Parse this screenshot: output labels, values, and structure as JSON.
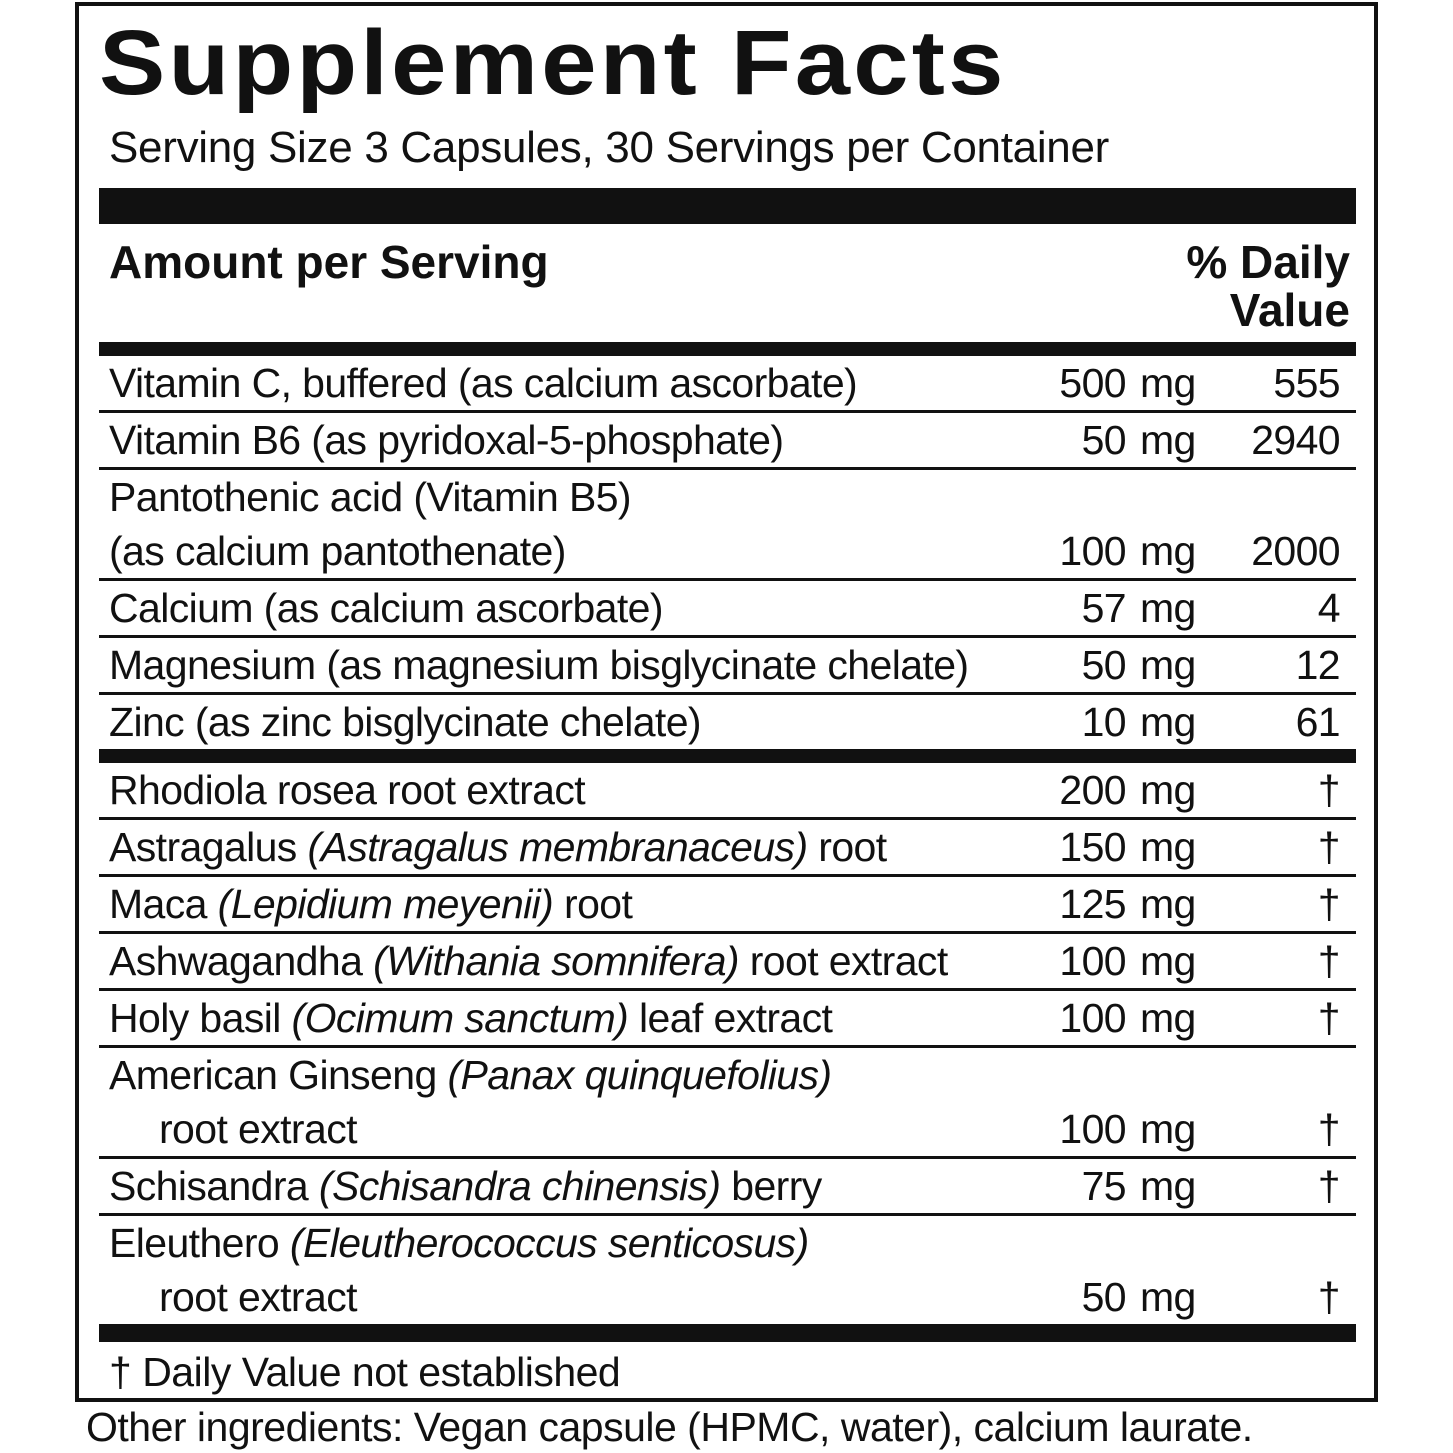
{
  "title": "Supplement Facts",
  "serving": "Serving Size 3 Capsules, 30 Servings per Container",
  "header": {
    "amount": "Amount per Serving",
    "dv": [
      "% Daily",
      "Value"
    ]
  },
  "sections": [
    {
      "rows": [
        {
          "lines": [
            [
              {
                "text": "Vitamin C, buffered (as calcium ascorbate)"
              }
            ]
          ],
          "amount": 500,
          "unit": "mg",
          "dv": 555
        },
        {
          "lines": [
            [
              {
                "text": "Vitamin B6 (as pyridoxal-5-phosphate)"
              }
            ]
          ],
          "amount": 50,
          "unit": "mg",
          "dv": 2940
        },
        {
          "lines": [
            [
              {
                "text": "Pantothenic acid (Vitamin B5)"
              }
            ],
            [
              {
                "text": "(as calcium pantothenate)"
              }
            ]
          ],
          "amount": 100,
          "unit": "mg",
          "dv": 2000
        },
        {
          "lines": [
            [
              {
                "text": "Calcium (as calcium ascorbate)"
              }
            ]
          ],
          "amount": 57,
          "unit": "mg",
          "dv": 4
        },
        {
          "lines": [
            [
              {
                "text": "Magnesium (as magnesium bisglycinate chelate)"
              }
            ]
          ],
          "amount": 50,
          "unit": "mg",
          "dv": 12
        },
        {
          "lines": [
            [
              {
                "text": "Zinc (as zinc bisglycinate chelate)"
              }
            ]
          ],
          "amount": 10,
          "unit": "mg",
          "dv": 61
        }
      ]
    },
    {
      "rows": [
        {
          "lines": [
            [
              {
                "text": "Rhodiola rosea root extract"
              }
            ]
          ],
          "amount": 200,
          "unit": "mg",
          "dv": "†"
        },
        {
          "lines": [
            [
              {
                "text": "Astragalus "
              },
              {
                "text": "(Astragalus membranaceus)",
                "italic": true
              },
              {
                "text": " root"
              }
            ]
          ],
          "amount": 150,
          "unit": "mg",
          "dv": "†"
        },
        {
          "lines": [
            [
              {
                "text": "Maca "
              },
              {
                "text": "(Lepidium meyenii)",
                "italic": true
              },
              {
                "text": " root"
              }
            ]
          ],
          "amount": 125,
          "unit": "mg",
          "dv": "†"
        },
        {
          "lines": [
            [
              {
                "text": "Ashwagandha "
              },
              {
                "text": "(Withania somnifera)",
                "italic": true
              },
              {
                "text": " root extract"
              }
            ]
          ],
          "amount": 100,
          "unit": "mg",
          "dv": "†"
        },
        {
          "lines": [
            [
              {
                "text": "Holy basil "
              },
              {
                "text": "(Ocimum sanctum)",
                "italic": true
              },
              {
                "text": " leaf extract"
              }
            ]
          ],
          "amount": 100,
          "unit": "mg",
          "dv": "†"
        },
        {
          "lines": [
            [
              {
                "text": "American Ginseng "
              },
              {
                "text": "(Panax quinquefolius)",
                "italic": true
              }
            ],
            [
              {
                "text": "root extract"
              }
            ]
          ],
          "amount": 100,
          "unit": "mg",
          "dv": "†"
        },
        {
          "lines": [
            [
              {
                "text": "Schisandra "
              },
              {
                "text": "(Schisandra chinensis)",
                "italic": true
              },
              {
                "text": " berry"
              }
            ]
          ],
          "amount": 75,
          "unit": "mg",
          "dv": "†"
        },
        {
          "lines": [
            [
              {
                "text": "Eleuthero "
              },
              {
                "text": "(Eleutherococcus senticosus)",
                "italic": true
              }
            ],
            [
              {
                "text": "root extract"
              }
            ]
          ],
          "amount": 50,
          "unit": "mg",
          "dv": "†"
        }
      ]
    }
  ],
  "footnote": "† Daily Value not established",
  "other": "Other ingredients: Vegan capsule (HPMC, water), calcium laurate."
}
